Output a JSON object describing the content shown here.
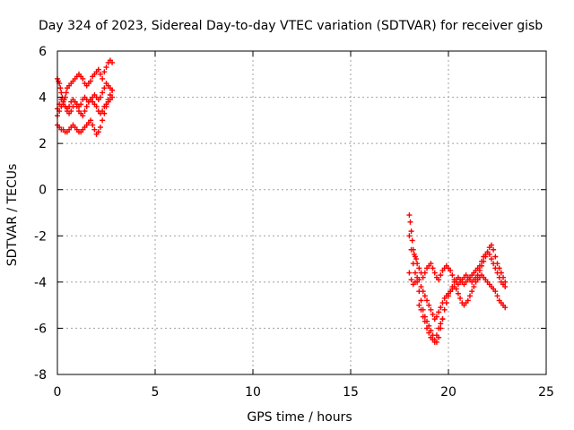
{
  "chart_data": {
    "type": "scatter",
    "title": "Day 324 of 2023, Sidereal Day-to-day VTEC variation (SDTVAR) for receiver gisb",
    "xlabel": "GPS time / hours",
    "ylabel": "SDTVAR / TECUs",
    "xlim": [
      0,
      25
    ],
    "ylim": [
      -8,
      6
    ],
    "xticks": [
      "0",
      "5",
      "10",
      "15",
      "20",
      "25"
    ],
    "yticks": [
      "-8",
      "-6",
      "-4",
      "-2",
      "0",
      "2",
      "4",
      "6"
    ],
    "grid": true,
    "marker": "+",
    "color": "#ff0000",
    "series": [
      {
        "x": [
          0.0,
          0.05,
          0.1,
          0.15,
          0.2,
          0.25,
          0.3,
          0.35,
          0.4,
          0.45,
          0.5,
          0.6,
          0.7,
          0.8,
          0.9,
          1.0,
          1.1,
          1.2,
          1.3,
          1.4,
          1.5,
          1.6,
          1.7,
          1.8,
          1.9,
          2.0,
          2.1,
          2.2,
          2.3,
          2.4,
          2.5,
          2.6,
          2.7,
          2.8,
          0.0,
          0.1,
          0.2,
          0.3,
          0.4,
          0.5,
          0.6,
          0.7,
          0.8,
          0.9,
          1.0,
          1.1,
          1.2,
          1.3,
          1.4,
          1.5,
          1.6,
          1.7,
          1.8,
          1.9,
          2.0,
          2.1,
          2.2,
          2.3,
          2.4,
          2.5,
          2.6,
          2.7,
          2.8,
          0.0,
          0.1,
          0.2,
          0.3,
          0.4,
          0.5,
          0.6,
          0.7,
          0.8,
          0.9,
          1.0,
          1.1,
          1.2,
          1.3,
          1.4,
          1.5,
          1.6,
          1.7,
          1.8,
          1.9,
          2.0,
          2.1,
          2.2,
          2.3,
          2.4,
          2.5,
          2.6,
          2.7,
          2.8,
          0.0,
          0.1,
          0.2,
          0.3,
          0.4,
          0.5,
          0.6,
          0.7,
          0.8,
          0.9,
          1.0,
          1.1,
          1.2,
          1.3,
          1.4,
          1.5,
          1.6,
          1.7,
          1.8,
          1.9,
          2.0,
          2.1,
          2.2,
          2.3,
          2.4,
          2.5,
          2.6,
          2.7,
          2.8
        ],
        "y": [
          4.8,
          4.7,
          4.6,
          4.4,
          4.2,
          4.0,
          3.8,
          3.9,
          4.0,
          4.2,
          4.4,
          4.5,
          4.6,
          4.7,
          4.8,
          4.9,
          5.0,
          4.9,
          4.8,
          4.6,
          4.5,
          4.6,
          4.7,
          4.9,
          5.0,
          5.1,
          5.2,
          5.0,
          4.8,
          5.1,
          5.3,
          5.5,
          5.6,
          5.5,
          3.5,
          3.7,
          3.9,
          3.8,
          3.6,
          3.5,
          3.6,
          3.8,
          3.9,
          3.8,
          3.7,
          3.6,
          3.7,
          3.9,
          4.0,
          3.9,
          3.8,
          3.9,
          4.0,
          4.1,
          4.0,
          3.9,
          4.0,
          4.2,
          4.4,
          4.6,
          4.5,
          4.4,
          4.3,
          3.2,
          3.4,
          3.6,
          3.7,
          3.6,
          3.4,
          3.3,
          3.4,
          3.6,
          3.8,
          3.6,
          3.4,
          3.3,
          3.2,
          3.4,
          3.6,
          3.8,
          3.9,
          3.8,
          3.7,
          3.6,
          3.4,
          3.3,
          3.4,
          3.6,
          3.7,
          3.8,
          3.9,
          4.0,
          2.8,
          2.7,
          2.6,
          2.6,
          2.5,
          2.5,
          2.6,
          2.7,
          2.8,
          2.7,
          2.6,
          2.5,
          2.5,
          2.6,
          2.7,
          2.8,
          2.9,
          3.0,
          2.8,
          2.6,
          2.4,
          2.5,
          2.7,
          3.0,
          3.3,
          3.6,
          3.9,
          4.1,
          4.3
        ]
      },
      {
        "x": [
          18.0,
          18.05,
          18.1,
          18.15,
          18.2,
          18.25,
          18.3,
          18.35,
          18.4,
          18.5,
          18.6,
          18.7,
          18.8,
          18.9,
          19.0,
          19.1,
          19.2,
          19.3,
          19.4,
          19.5,
          19.6,
          19.7,
          19.8,
          19.9,
          20.0,
          20.1,
          20.2,
          20.3,
          20.4,
          20.5,
          20.6,
          20.7,
          20.8,
          20.9,
          21.0,
          21.1,
          21.2,
          21.3,
          21.4,
          21.5,
          21.6,
          21.7,
          21.8,
          21.9,
          22.0,
          22.1,
          22.2,
          22.3,
          22.4,
          22.5,
          22.6,
          22.7,
          22.8,
          22.9,
          18.0,
          18.1,
          18.2,
          18.3,
          18.4,
          18.5,
          18.6,
          18.7,
          18.8,
          18.9,
          19.0,
          19.1,
          19.2,
          19.3,
          19.4,
          19.5,
          19.6,
          19.7,
          19.8,
          19.9,
          20.0,
          20.1,
          20.2,
          20.3,
          20.4,
          20.5,
          20.6,
          20.7,
          20.8,
          20.9,
          21.0,
          21.1,
          21.2,
          21.3,
          21.4,
          21.5,
          21.6,
          21.7,
          21.8,
          21.9,
          22.0,
          22.1,
          22.2,
          22.3,
          22.4,
          22.5,
          22.6,
          22.7,
          22.8,
          22.9,
          18.0,
          18.1,
          18.2,
          18.3,
          18.4,
          18.5,
          18.6,
          18.7,
          18.8,
          18.9,
          19.0,
          19.1,
          19.2,
          19.3,
          19.4,
          19.5,
          19.6,
          19.7,
          19.8,
          19.9,
          20.0,
          20.1,
          20.2,
          20.3,
          20.4,
          20.5,
          20.6,
          20.7,
          20.8,
          20.9,
          21.0,
          21.1,
          21.2,
          21.3,
          21.4,
          21.5,
          21.6,
          21.7,
          21.8,
          21.9,
          22.0,
          22.1,
          22.2,
          22.3,
          22.4,
          22.5,
          22.6,
          22.7,
          22.8,
          22.9
        ],
        "y": [
          -1.1,
          -1.4,
          -1.8,
          -2.2,
          -2.6,
          -2.8,
          -2.9,
          -3.0,
          -3.2,
          -3.4,
          -3.6,
          -3.8,
          -3.6,
          -3.4,
          -3.3,
          -3.2,
          -3.4,
          -3.6,
          -3.8,
          -3.9,
          -3.7,
          -3.5,
          -3.4,
          -3.3,
          -3.4,
          -3.5,
          -3.7,
          -3.9,
          -4.0,
          -4.1,
          -4.0,
          -3.9,
          -3.8,
          -3.7,
          -3.8,
          -3.9,
          -4.0,
          -3.9,
          -3.8,
          -3.7,
          -3.5,
          -3.3,
          -3.1,
          -2.9,
          -2.7,
          -2.5,
          -2.4,
          -2.6,
          -2.9,
          -3.2,
          -3.4,
          -3.6,
          -3.8,
          -4.0,
          -3.6,
          -3.9,
          -4.1,
          -4.0,
          -3.8,
          -3.9,
          -4.2,
          -4.4,
          -4.6,
          -4.8,
          -5.0,
          -5.2,
          -5.4,
          -5.6,
          -5.5,
          -5.3,
          -5.1,
          -4.9,
          -4.7,
          -4.6,
          -4.5,
          -4.4,
          -4.3,
          -4.2,
          -4.3,
          -4.5,
          -4.7,
          -4.9,
          -5.0,
          -4.9,
          -4.8,
          -4.6,
          -4.4,
          -4.2,
          -4.0,
          -3.9,
          -3.8,
          -3.7,
          -3.8,
          -3.9,
          -4.0,
          -4.1,
          -4.2,
          -4.3,
          -4.4,
          -4.6,
          -4.8,
          -4.9,
          -5.0,
          -5.1,
          -2.0,
          -2.6,
          -3.2,
          -3.6,
          -4.0,
          -4.4,
          -4.8,
          -5.2,
          -5.5,
          -5.7,
          -5.9,
          -6.1,
          -6.3,
          -6.5,
          -6.6,
          -6.4,
          -6.0,
          -5.6,
          -5.2,
          -4.9,
          -4.6,
          -4.4,
          -4.2,
          -4.0,
          -3.9,
          -3.8,
          -3.9,
          -4.0,
          -4.1,
          -4.0,
          -3.9,
          -3.8,
          -3.7,
          -3.6,
          -3.5,
          -3.4,
          -3.3,
          -3.1,
          -2.9,
          -2.8,
          -2.7,
          -2.8,
          -3.0,
          -3.2,
          -3.4,
          -3.6,
          -3.8,
          -4.0,
          -4.1,
          -4.2
        ]
      },
      {
        "x": [
          18.5,
          18.6,
          18.7,
          18.8,
          18.9,
          19.0,
          19.1,
          19.2,
          19.3,
          19.4,
          19.5,
          19.6,
          19.7
        ],
        "y": [
          -5.0,
          -5.2,
          -5.5,
          -5.7,
          -6.0,
          -6.2,
          -6.4,
          -6.5,
          -6.6,
          -6.3,
          -6.0,
          -5.8,
          -5.6
        ]
      }
    ]
  }
}
